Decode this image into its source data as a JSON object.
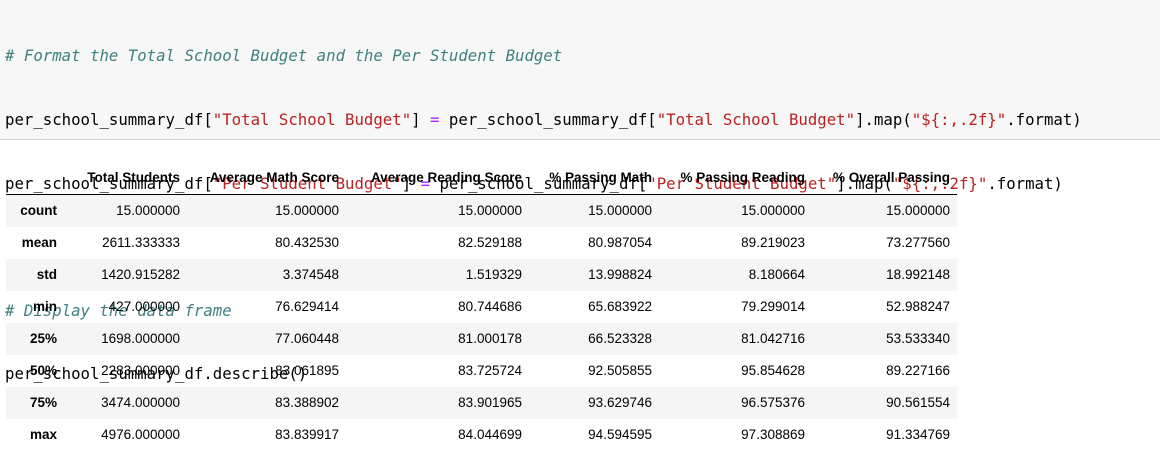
{
  "code_cell": {
    "comment1": "# Format the Total School Budget and the Per Student Budget",
    "line2": {
      "a": "per_school_summary_df[",
      "s1": "\"Total School Budget\"",
      "b": "] ",
      "eq": "=",
      "c": " per_school_summary_df[",
      "s2": "\"Total School Budget\"",
      "d": "].map(",
      "s3": "\"${:,.2f}\"",
      "e": ".format)"
    },
    "line3": {
      "a": "per_school_summary_df[",
      "s1": "\"Per Student Budget\"",
      "b": "] ",
      "eq": "=",
      "c": " per_school_summary_df[",
      "s2": "\"Per Student Budget\"",
      "d": "].map(",
      "s3": "\"${:,.2f}\"",
      "e": ".format)"
    },
    "comment2": "# Display the data frame",
    "line5": "per_school_summary_df.describe()"
  },
  "table": {
    "columns": [
      "",
      "Total Students",
      "Average Math Score",
      "Average Reading Score",
      "% Passing Math",
      "% Passing Reading",
      "% Overall Passing"
    ],
    "rows": [
      [
        "count",
        "15.000000",
        "15.000000",
        "15.000000",
        "15.000000",
        "15.000000",
        "15.000000"
      ],
      [
        "mean",
        "2611.333333",
        "80.432530",
        "82.529188",
        "80.987054",
        "89.219023",
        "73.277560"
      ],
      [
        "std",
        "1420.915282",
        "3.374548",
        "1.519329",
        "13.998824",
        "8.180664",
        "18.992148"
      ],
      [
        "min",
        "427.000000",
        "76.629414",
        "80.744686",
        "65.683922",
        "79.299014",
        "52.988247"
      ],
      [
        "25%",
        "1698.000000",
        "77.060448",
        "81.000178",
        "66.523328",
        "81.042716",
        "53.533340"
      ],
      [
        "50%",
        "2283.000000",
        "83.061895",
        "83.725724",
        "92.505855",
        "95.854628",
        "89.227166"
      ],
      [
        "75%",
        "3474.000000",
        "83.388902",
        "83.901965",
        "93.629746",
        "96.575376",
        "90.561554"
      ],
      [
        "max",
        "4976.000000",
        "83.839917",
        "84.044699",
        "94.594595",
        "97.308869",
        "91.334769"
      ]
    ]
  }
}
